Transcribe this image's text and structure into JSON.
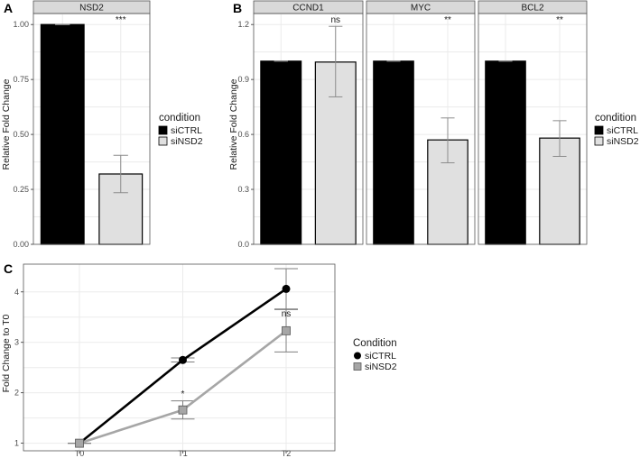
{
  "panels": {
    "A": {
      "label": "A",
      "ylabel": "Relative Fold Change"
    },
    "B": {
      "label": "B",
      "ylabel": "Relative Fold Change"
    },
    "C": {
      "label": "C",
      "ylabel": "Fold Change to T0"
    }
  },
  "colors": {
    "siCTRL": "#000000",
    "siNSD2": "#e0e0e0",
    "siNSD2_line": "#a6a6a6",
    "siNSD2_point": "#a6a6a6"
  },
  "chart_data": [
    {
      "type": "bar",
      "panel": "A",
      "facet": "NSD2",
      "categories": [
        "siCTRL",
        "siNSD2"
      ],
      "values": [
        1.0,
        0.32
      ],
      "error": [
        [
          1.0,
          1.0
        ],
        [
          0.235,
          0.405
        ]
      ],
      "ylim": [
        0,
        1.05
      ],
      "yticks": [
        "0.00",
        "0.25",
        "0.50",
        "0.75",
        "1.00"
      ],
      "ytick_values": [
        0,
        0.25,
        0.5,
        0.75,
        1.0
      ],
      "annotation": "***",
      "legend": {
        "title": "condition",
        "entries": [
          "siCTRL",
          "siNSD2"
        ],
        "position": "right"
      }
    },
    {
      "type": "bar",
      "panel": "B",
      "facets": [
        {
          "name": "CCND1",
          "values": [
            1.0,
            0.995
          ],
          "error": [
            [
              1.0,
              1.0
            ],
            [
              0.805,
              1.19
            ]
          ],
          "annotation": "ns"
        },
        {
          "name": "MYC",
          "values": [
            1.0,
            0.57
          ],
          "error": [
            [
              1.0,
              1.0
            ],
            [
              0.445,
              0.69
            ]
          ],
          "annotation": "**"
        },
        {
          "name": "BCL2",
          "values": [
            1.0,
            0.58
          ],
          "error": [
            [
              1.0,
              1.0
            ],
            [
              0.48,
              0.675
            ]
          ],
          "annotation": "**"
        }
      ],
      "categories": [
        "siCTRL",
        "siNSD2"
      ],
      "ylim": [
        0,
        1.26
      ],
      "yticks": [
        "0.0",
        "0.3",
        "0.6",
        "0.9",
        "1.2"
      ],
      "ytick_values": [
        0,
        0.3,
        0.6,
        0.9,
        1.2
      ],
      "legend": {
        "title": "condition",
        "entries": [
          "siCTRL",
          "siNSD2"
        ],
        "position": "right"
      }
    },
    {
      "type": "line",
      "panel": "C",
      "x": [
        "T0",
        "T1",
        "T2"
      ],
      "series": [
        {
          "name": "siCTRL",
          "values": [
            1.0,
            2.65,
            4.06
          ],
          "error": [
            [
              1.0,
              1.0
            ],
            [
              2.61,
              2.69
            ],
            [
              3.66,
              4.46
            ]
          ]
        },
        {
          "name": "siNSD2",
          "values": [
            1.0,
            1.66,
            3.23
          ],
          "error": [
            [
              1.0,
              1.0
            ],
            [
              1.48,
              1.84
            ],
            [
              2.81,
              3.65
            ]
          ]
        }
      ],
      "annotations": [
        {
          "x": "T1",
          "text": "*",
          "y": 1.98
        },
        {
          "x": "T2",
          "text": "ns",
          "y": 3.57
        }
      ],
      "ylim": [
        0.85,
        4.55
      ],
      "yticks": [
        "1",
        "2",
        "3",
        "4"
      ],
      "ytick_values": [
        1,
        2,
        3,
        4
      ],
      "legend": {
        "title": "Condition",
        "entries": [
          "siCTRL",
          "siNSD2"
        ],
        "position": "right"
      }
    }
  ]
}
